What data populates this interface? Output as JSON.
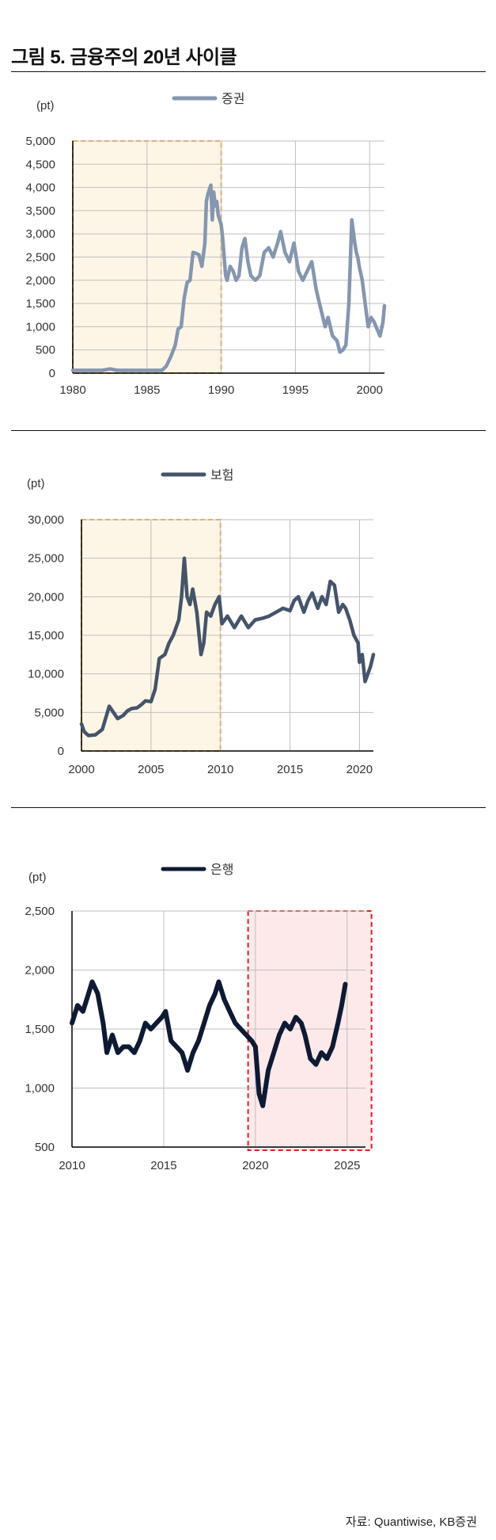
{
  "figure": {
    "title": "그림 5. 금융주의 20년 사이클",
    "source": "자료: Quantiwise, KB증권"
  },
  "colors": {
    "securities": "#8496b0",
    "insurance": "#44546a",
    "bank": "#0e1a33",
    "highlight_orange_fill": "#fdf6e6",
    "highlight_orange_border": "#f0a030",
    "highlight_red_fill": "#fde9ea",
    "highlight_red_border": "#e02020",
    "grid": "#bfbfbf"
  },
  "chart_data": [
    {
      "type": "line",
      "title": "",
      "unit_label": "(pt)",
      "legend": "증권",
      "xlim": [
        1980,
        2001
      ],
      "ylim": [
        0,
        5000
      ],
      "y_ticks": [
        0,
        500,
        1000,
        1500,
        2000,
        2500,
        3000,
        3500,
        4000,
        4500,
        5000
      ],
      "y_tick_labels": [
        "0",
        "500",
        "1,000",
        "1,500",
        "2,000",
        "2,500",
        "3,000",
        "3,500",
        "4,000",
        "4,500",
        "5,000"
      ],
      "x_ticks": [
        1980,
        1985,
        1990,
        1995,
        2000
      ],
      "x_tick_labels": [
        "1980",
        "1985",
        "1990",
        "1995",
        "2000"
      ],
      "highlight": {
        "from": 1980,
        "to": 1990,
        "style": "orange"
      },
      "series": [
        {
          "name": "증권",
          "x": [
            1980.0,
            1981.0,
            1982.0,
            1982.5,
            1983.0,
            1984.0,
            1985.0,
            1986.0,
            1986.3,
            1986.6,
            1986.9,
            1987.1,
            1987.3,
            1987.5,
            1987.7,
            1987.9,
            1988.1,
            1988.3,
            1988.5,
            1988.7,
            1988.9,
            1989.0,
            1989.1,
            1989.2,
            1989.3,
            1989.4,
            1989.5,
            1989.6,
            1989.7,
            1989.8,
            1989.9,
            1990.0,
            1990.1,
            1990.2,
            1990.3,
            1990.4,
            1990.6,
            1990.8,
            1991.0,
            1991.2,
            1991.4,
            1991.6,
            1991.8,
            1992.0,
            1992.3,
            1992.6,
            1992.9,
            1993.2,
            1993.5,
            1993.8,
            1994.0,
            1994.3,
            1994.6,
            1994.9,
            1995.2,
            1995.5,
            1995.8,
            1996.1,
            1996.4,
            1996.7,
            1997.0,
            1997.2,
            1997.5,
            1997.8,
            1998.0,
            1998.2,
            1998.4,
            1998.6,
            1998.8,
            1999.0,
            1999.1,
            1999.2,
            1999.3,
            1999.5,
            1999.7,
            1999.9,
            2000.1,
            2000.3,
            2000.5,
            2000.7,
            2000.9,
            2001.0
          ],
          "values": [
            60,
            60,
            60,
            90,
            60,
            60,
            60,
            60,
            150,
            350,
            600,
            950,
            1000,
            1600,
            1950,
            2000,
            2600,
            2580,
            2550,
            2300,
            2800,
            3700,
            3850,
            3950,
            4050,
            3300,
            3900,
            3600,
            3700,
            3400,
            3300,
            3200,
            2900,
            2500,
            2100,
            2000,
            2300,
            2200,
            2000,
            2100,
            2700,
            2900,
            2400,
            2100,
            2000,
            2100,
            2600,
            2700,
            2500,
            2800,
            3050,
            2600,
            2400,
            2800,
            2200,
            2000,
            2200,
            2400,
            1800,
            1400,
            1000,
            1200,
            800,
            700,
            450,
            500,
            600,
            1500,
            3300,
            2800,
            2600,
            2500,
            2300,
            2000,
            1500,
            1000,
            1200,
            1100,
            950,
            800,
            1100,
            1450
          ]
        }
      ]
    },
    {
      "type": "line",
      "title": "",
      "unit_label": "(pt)",
      "legend": "보험",
      "xlim": [
        2000,
        2021
      ],
      "ylim": [
        0,
        30000
      ],
      "y_ticks": [
        0,
        5000,
        10000,
        15000,
        20000,
        25000,
        30000
      ],
      "y_tick_labels": [
        "0",
        "5,000",
        "10,000",
        "15,000",
        "20,000",
        "25,000",
        "30,000"
      ],
      "x_ticks": [
        2000,
        2005,
        2010,
        2015,
        2020
      ],
      "x_tick_labels": [
        "2000",
        "2005",
        "2010",
        "2015",
        "2020"
      ],
      "highlight": {
        "from": 2000,
        "to": 2010,
        "style": "orange"
      },
      "series": [
        {
          "name": "보험",
          "x": [
            2000.0,
            2000.2,
            2000.5,
            2001.0,
            2001.5,
            2002.0,
            2002.3,
            2002.6,
            2003.0,
            2003.3,
            2003.6,
            2004.0,
            2004.3,
            2004.6,
            2005.0,
            2005.3,
            2005.6,
            2006.0,
            2006.3,
            2006.6,
            2007.0,
            2007.2,
            2007.4,
            2007.6,
            2007.8,
            2008.0,
            2008.3,
            2008.6,
            2008.8,
            2009.0,
            2009.3,
            2009.6,
            2009.9,
            2010.1,
            2010.5,
            2011.0,
            2011.5,
            2012.0,
            2012.5,
            2013.0,
            2013.5,
            2014.0,
            2014.5,
            2015.0,
            2015.3,
            2015.6,
            2016.0,
            2016.3,
            2016.6,
            2017.0,
            2017.3,
            2017.6,
            2017.9,
            2018.2,
            2018.5,
            2018.8,
            2019.0,
            2019.3,
            2019.6,
            2019.9,
            2020.0,
            2020.2,
            2020.4,
            2020.6,
            2020.8,
            2021.0
          ],
          "values": [
            3500,
            2500,
            2000,
            2100,
            2800,
            5800,
            5000,
            4200,
            4600,
            5200,
            5500,
            5600,
            6000,
            6500,
            6400,
            8000,
            12000,
            12500,
            14000,
            15000,
            17000,
            20000,
            25000,
            20000,
            19000,
            21000,
            18000,
            12500,
            14000,
            18000,
            17500,
            19000,
            20000,
            16500,
            17500,
            16000,
            17500,
            16000,
            17000,
            17200,
            17500,
            18000,
            18500,
            18200,
            19500,
            20000,
            18000,
            19500,
            20500,
            18500,
            20000,
            19000,
            22000,
            21500,
            18000,
            19000,
            18500,
            17000,
            15000,
            14000,
            11500,
            12500,
            9000,
            10000,
            11000,
            12500
          ]
        }
      ]
    },
    {
      "type": "line",
      "title": "",
      "unit_label": "(pt)",
      "legend": "은행",
      "xlim": [
        2010,
        2026
      ],
      "ylim": [
        500,
        2500
      ],
      "y_ticks": [
        500,
        1000,
        1500,
        2000,
        2500
      ],
      "y_tick_labels": [
        "500",
        "1,000",
        "1,500",
        "2,000",
        "2,500"
      ],
      "x_ticks": [
        2010,
        2015,
        2020,
        2025
      ],
      "x_tick_labels": [
        "2010",
        "2015",
        "2020",
        "2025"
      ],
      "highlight": {
        "from": 2019.6,
        "to": 2025.9,
        "style": "red"
      },
      "series": [
        {
          "name": "은행",
          "x": [
            2010.0,
            2010.3,
            2010.6,
            2010.9,
            2011.1,
            2011.4,
            2011.7,
            2011.9,
            2012.2,
            2012.5,
            2012.8,
            2013.1,
            2013.4,
            2013.7,
            2014.0,
            2014.3,
            2014.6,
            2014.9,
            2015.1,
            2015.4,
            2015.7,
            2016.0,
            2016.3,
            2016.6,
            2016.9,
            2017.2,
            2017.5,
            2017.8,
            2018.0,
            2018.3,
            2018.6,
            2018.9,
            2019.2,
            2019.5,
            2019.8,
            2020.0,
            2020.2,
            2020.4,
            2020.7,
            2021.0,
            2021.3,
            2021.6,
            2021.9,
            2022.2,
            2022.5,
            2022.7,
            2023.0,
            2023.3,
            2023.6,
            2023.9,
            2024.2,
            2024.5,
            2024.7,
            2024.9
          ],
          "values": [
            1550,
            1700,
            1650,
            1800,
            1900,
            1800,
            1550,
            1300,
            1450,
            1300,
            1350,
            1350,
            1300,
            1400,
            1550,
            1500,
            1550,
            1600,
            1650,
            1400,
            1350,
            1300,
            1150,
            1300,
            1400,
            1550,
            1700,
            1800,
            1900,
            1750,
            1650,
            1550,
            1500,
            1450,
            1400,
            1350,
            950,
            850,
            1150,
            1300,
            1450,
            1550,
            1500,
            1600,
            1550,
            1450,
            1250,
            1200,
            1300,
            1250,
            1350,
            1550,
            1700,
            1880
          ]
        }
      ]
    }
  ]
}
